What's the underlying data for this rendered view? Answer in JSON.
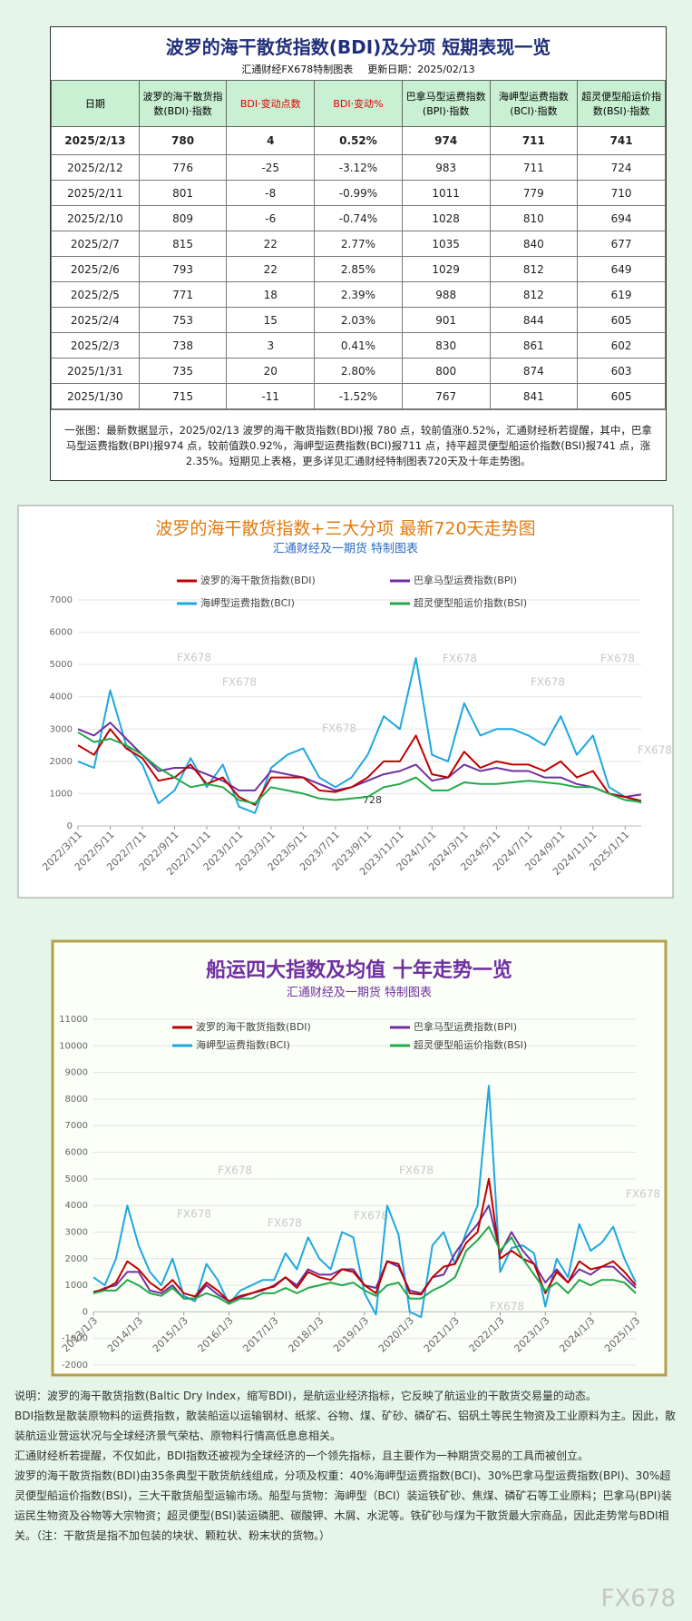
{
  "header": {
    "title": "波罗的海干散货指数(BDI)及分项  短期表现一览",
    "source": "汇通财经FX678特制图表",
    "update": "更新日期：2025/02/13"
  },
  "table": {
    "columns": [
      "日期",
      "波罗的海干散货指数(BDI)·指数",
      "BDI·变动点数",
      "BDI·变动%",
      "巴拿马型运费指数(BPI)·指数",
      "海岬型运费指数(BCI)·指数",
      "超灵便型船运价指数(BSI)·指数"
    ],
    "rows": [
      [
        "2025/2/13",
        780,
        4,
        "0.52%",
        974,
        711,
        741
      ],
      [
        "2025/2/12",
        776,
        -25,
        "-3.12%",
        983,
        711,
        724
      ],
      [
        "2025/2/11",
        801,
        -8,
        "-0.99%",
        1011,
        779,
        710
      ],
      [
        "2025/2/10",
        809,
        -6,
        "-0.74%",
        1028,
        810,
        694
      ],
      [
        "2025/2/7",
        815,
        22,
        "2.77%",
        1035,
        840,
        677
      ],
      [
        "2025/2/6",
        793,
        22,
        "2.85%",
        1029,
        812,
        649
      ],
      [
        "2025/2/5",
        771,
        18,
        "2.39%",
        988,
        812,
        619
      ],
      [
        "2025/2/4",
        753,
        15,
        "2.03%",
        901,
        844,
        605
      ],
      [
        "2025/2/3",
        738,
        3,
        "0.41%",
        830,
        861,
        602
      ],
      [
        "2025/1/31",
        735,
        20,
        "2.80%",
        800,
        874,
        603
      ],
      [
        "2025/1/30",
        715,
        -11,
        "-1.52%",
        767,
        841,
        605
      ]
    ]
  },
  "summary": "一张图：最新数据显示，2025/02/13 波罗的海干散货指数(BDI)报 780 点，较前值涨0.52%，汇通财经析若提醒，其中，巴拿马型运费指数(BPI)报974 点，较前值跌0.92%，海岬型运费指数(BCI)报711 点，持平超灵便型船运价指数(BSI)报741 点，涨2.35%。短期见上表格，更多详见汇通财经特制图表720天及十年走势图。",
  "watermark": "FX678",
  "chart_data": [
    {
      "type": "line",
      "title": "波罗的海干散货指数+三大分项  最新720天走势图",
      "subtitle": "汇通财经及一期货  特制图表",
      "annotation": "728",
      "x": [
        "2022/3/11",
        "2022/4/11",
        "2022/5/11",
        "2022/6/11",
        "2022/7/11",
        "2022/8/11",
        "2022/9/11",
        "2022/10/11",
        "2022/11/11",
        "2022/12/11",
        "2023/1/11",
        "2023/2/11",
        "2023/3/11",
        "2023/4/11",
        "2023/5/11",
        "2023/6/11",
        "2023/7/11",
        "2023/8/11",
        "2023/9/11",
        "2023/10/11",
        "2023/11/11",
        "2023/12/11",
        "2024/1/11",
        "2024/2/11",
        "2024/3/11",
        "2024/4/11",
        "2024/5/11",
        "2024/6/11",
        "2024/7/11",
        "2024/8/11",
        "2024/9/11",
        "2024/10/11",
        "2024/11/11",
        "2024/12/11",
        "2025/1/11",
        "2025/2/13"
      ],
      "xticks": [
        "2022/3/11",
        "2022/5/11",
        "2022/7/11",
        "2022/9/11",
        "2022/11/11",
        "2023/1/11",
        "2023/3/11",
        "2023/5/11",
        "2023/7/11",
        "2023/9/11",
        "2023/11/11",
        "2024/1/11",
        "2024/3/11",
        "2024/5/11",
        "2024/7/11",
        "2024/9/11",
        "2024/11/11",
        "2025/1/11"
      ],
      "ylim": [
        0,
        7000
      ],
      "yticks": [
        0,
        1000,
        2000,
        3000,
        4000,
        5000,
        6000,
        7000
      ],
      "grid": true,
      "series": [
        {
          "name": "波罗的海干散货指数(BDI)",
          "color": "#c00000",
          "values": [
            2500,
            2200,
            3000,
            2400,
            2100,
            1400,
            1500,
            1900,
            1300,
            1500,
            900,
            650,
            1500,
            1500,
            1500,
            1100,
            1050,
            1200,
            1500,
            2000,
            2000,
            2800,
            1600,
            1500,
            2300,
            1800,
            2000,
            1900,
            1900,
            1700,
            2000,
            1500,
            1700,
            1000,
            900,
            780
          ]
        },
        {
          "name": "巴拿马型运费指数(BPI)",
          "color": "#7030a0",
          "values": [
            3000,
            2800,
            3200,
            2700,
            2200,
            1700,
            1800,
            1800,
            1600,
            1400,
            1100,
            1100,
            1700,
            1600,
            1500,
            1300,
            1100,
            1200,
            1400,
            1600,
            1700,
            1900,
            1400,
            1500,
            1900,
            1700,
            1800,
            1700,
            1700,
            1500,
            1500,
            1300,
            1200,
            1000,
            900,
            974
          ]
        },
        {
          "name": "海岬型运费指数(BCI)",
          "color": "#1ea7e0",
          "values": [
            2000,
            1800,
            4200,
            2500,
            1900,
            700,
            1100,
            2100,
            1200,
            1900,
            600,
            400,
            1800,
            2200,
            2400,
            1500,
            1200,
            1500,
            2200,
            3400,
            3000,
            5200,
            2200,
            2000,
            3800,
            2800,
            3000,
            3000,
            2800,
            2500,
            3400,
            2200,
            2800,
            1200,
            900,
            711
          ]
        },
        {
          "name": "超灵便型船运价指数(BSI)",
          "color": "#22a84a",
          "values": [
            2900,
            2600,
            2700,
            2500,
            2200,
            1800,
            1500,
            1200,
            1300,
            1200,
            800,
            700,
            1200,
            1100,
            1000,
            850,
            800,
            850,
            900,
            1200,
            1300,
            1500,
            1100,
            1100,
            1350,
            1300,
            1300,
            1350,
            1400,
            1350,
            1300,
            1200,
            1200,
            1000,
            800,
            741
          ]
        }
      ]
    },
    {
      "type": "line",
      "title": "船运四大指数及均值 十年走势一览",
      "subtitle": "汇通财经及一期货 特制图表",
      "x": [
        "2013/1/3",
        "2013/4/3",
        "2013/7/3",
        "2013/10/3",
        "2014/1/3",
        "2014/4/3",
        "2014/7/3",
        "2014/10/3",
        "2015/1/3",
        "2015/4/3",
        "2015/7/3",
        "2015/10/3",
        "2016/1/3",
        "2016/4/3",
        "2016/7/3",
        "2016/10/3",
        "2017/1/3",
        "2017/4/3",
        "2017/7/3",
        "2017/10/3",
        "2018/1/3",
        "2018/4/3",
        "2018/7/3",
        "2018/10/3",
        "2019/1/3",
        "2019/4/3",
        "2019/7/3",
        "2019/10/3",
        "2020/1/3",
        "2020/4/3",
        "2020/7/3",
        "2020/10/3",
        "2021/1/3",
        "2021/4/3",
        "2021/7/3",
        "2021/10/3",
        "2022/1/3",
        "2022/4/3",
        "2022/7/3",
        "2022/10/3",
        "2023/1/3",
        "2023/4/3",
        "2023/7/3",
        "2023/10/3",
        "2024/1/3",
        "2024/4/3",
        "2024/7/3",
        "2024/10/3",
        "2025/1/3"
      ],
      "xticks": [
        "2013/1/3",
        "2014/1/3",
        "2015/1/3",
        "2016/1/3",
        "2017/1/3",
        "2018/1/3",
        "2019/1/3",
        "2020/1/3",
        "2021/1/3",
        "2022/1/3",
        "2023/1/3",
        "2024/1/3",
        "2025/1/3"
      ],
      "ylim": [
        -2000,
        11000
      ],
      "yticks": [
        -2000,
        -1000,
        0,
        1000,
        2000,
        3000,
        4000,
        5000,
        6000,
        7000,
        8000,
        9000,
        10000,
        11000
      ],
      "grid": true,
      "series": [
        {
          "name": "波罗的海干散货指数(BDI)",
          "color": "#c00000",
          "values": [
            750,
            850,
            1100,
            1900,
            1600,
            1100,
            800,
            1200,
            700,
            580,
            1100,
            800,
            400,
            600,
            700,
            850,
            950,
            1300,
            900,
            1500,
            1300,
            1200,
            1600,
            1500,
            1000,
            700,
            1900,
            1800,
            700,
            650,
            1300,
            1700,
            1800,
            2600,
            3000,
            5000,
            2000,
            2300,
            2000,
            1800,
            700,
            1500,
            1100,
            1900,
            1600,
            1700,
            1900,
            1500,
            1000
          ]
        },
        {
          "name": "巴拿马型运费指数(BPI)",
          "color": "#7030a0",
          "values": [
            700,
            900,
            1000,
            1500,
            1500,
            800,
            700,
            1000,
            500,
            500,
            1000,
            650,
            400,
            550,
            700,
            800,
            1000,
            1300,
            1000,
            1600,
            1400,
            1400,
            1600,
            1600,
            1000,
            900,
            1900,
            1700,
            800,
            700,
            1300,
            1400,
            2200,
            2800,
            3300,
            4000,
            2200,
            3000,
            2300,
            1800,
            1100,
            1600,
            1100,
            1600,
            1400,
            1700,
            1700,
            1300,
            900
          ]
        },
        {
          "name": "海岬型运费指数(BCI)",
          "color": "#1ea7e0",
          "values": [
            1300,
            1000,
            2000,
            4000,
            2500,
            1500,
            1000,
            2000,
            600,
            400,
            1800,
            1200,
            300,
            800,
            1000,
            1200,
            1200,
            2200,
            1600,
            2800,
            2000,
            1600,
            3000,
            2800,
            700,
            -100,
            4000,
            2900,
            0,
            -200,
            2500,
            3000,
            1800,
            3000,
            4000,
            8500,
            1500,
            2400,
            2500,
            2200,
            200,
            2000,
            1300,
            3300,
            2300,
            2600,
            3200,
            2000,
            1100
          ]
        },
        {
          "name": "超灵便型船运价指数(BSI)",
          "color": "#22a84a",
          "values": [
            700,
            800,
            800,
            1200,
            1000,
            700,
            600,
            900,
            500,
            500,
            700,
            550,
            300,
            500,
            500,
            700,
            700,
            900,
            700,
            900,
            1000,
            1100,
            1000,
            1100,
            800,
            600,
            1000,
            1100,
            500,
            500,
            800,
            1000,
            1300,
            2300,
            2700,
            3200,
            2300,
            2800,
            2000,
            1400,
            800,
            1100,
            700,
            1200,
            1000,
            1200,
            1200,
            1100,
            700
          ]
        }
      ]
    }
  ],
  "notes": [
    "说明：波罗的海干散货指数(Baltic Dry Index，缩写BDI)，是航运业经济指标，它反映了航运业的干散货交易量的动态。",
    "BDI指数是散装原物料的运费指数，散装船运以运输钢材、纸浆、谷物、煤、矿砂、磷矿石、铝矾土等民生物资及工业原料为主。因此，散装航运业营运状况与全球经济景气荣枯、原物料行情高低息息相关。",
    "汇通财经析若提醒，不仅如此，BDI指数还被视为全球经济的一个领先指标，且主要作为一种期货交易的工具而被创立。",
    "波罗的海干散货指数(BDI)由35条典型干散货航线组成，分项及权重：40%海岬型运费指数(BCI)、30%巴拿马型运费指数(BPI)、30%超灵便型船运价指数(BSI)，三大干散货船型运输市场。船型与货物：海岬型（BCI）装运铁矿砂、焦煤、磷矿石等工业原料；巴拿马(BPI)装运民生物资及谷物等大宗物资；超灵便型(BSI)装运磷肥、碳酸钾、木屑、水泥等。铁矿砂与煤为干散货最大宗商品，因此走势常与BDI相关。（注：干散货是指不加包装的块状、颗粒状、粉末状的货物。）"
  ]
}
